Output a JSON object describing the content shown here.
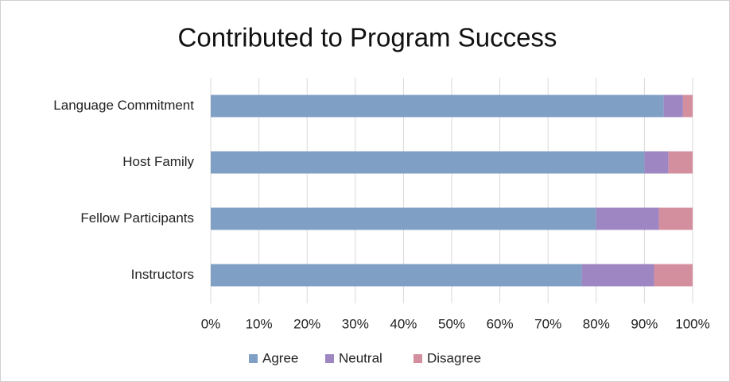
{
  "chart_data": {
    "type": "stacked_bar_horizontal",
    "title": "Contributed to Program Success",
    "categories": [
      "Language Commitment",
      "Host Family",
      "Fellow Participants",
      "Instructors"
    ],
    "series": [
      {
        "name": "Agree",
        "color": "#7f9fc4",
        "values": [
          94,
          90,
          80,
          77
        ]
      },
      {
        "name": "Neutral",
        "color": "#9e86c2",
        "values": [
          4,
          5,
          13,
          15
        ]
      },
      {
        "name": "Disagree",
        "color": "#d48f9f",
        "values": [
          2,
          5,
          7,
          8
        ]
      }
    ],
    "xlim": [
      0,
      100
    ],
    "xticks": [
      {
        "value": 0,
        "label": "0%"
      },
      {
        "value": 10,
        "label": "10%"
      },
      {
        "value": 20,
        "label": "20%"
      },
      {
        "value": 30,
        "label": "30%"
      },
      {
        "value": 40,
        "label": "40%"
      },
      {
        "value": 50,
        "label": "50%"
      },
      {
        "value": 60,
        "label": "60%"
      },
      {
        "value": 70,
        "label": "70%"
      },
      {
        "value": 80,
        "label": "80%"
      },
      {
        "value": 90,
        "label": "90%"
      },
      {
        "value": 100,
        "label": "100%"
      }
    ],
    "grid": true,
    "legend": "bottom"
  }
}
